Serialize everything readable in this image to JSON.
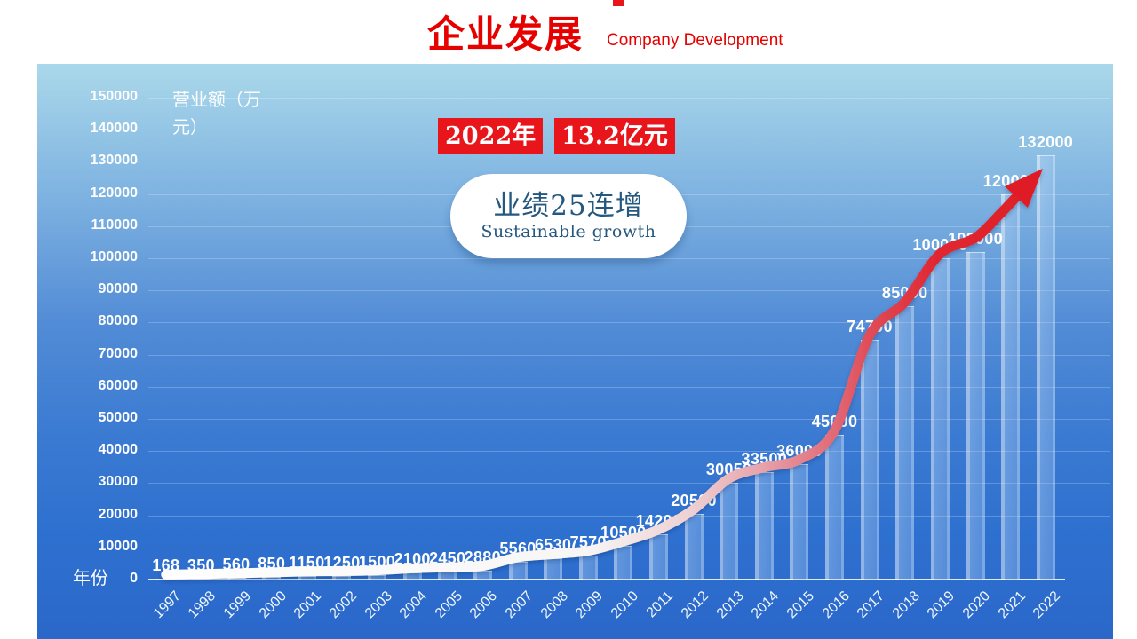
{
  "header": {
    "title": "企业发展",
    "subtitle": "Company Development"
  },
  "callout": {
    "year_badge": "2022年",
    "amount_badge": "13.2亿元"
  },
  "bubble": {
    "headline": "业绩25连增",
    "subline": "Sustainable growth"
  },
  "chart_data": {
    "type": "bar",
    "title": "企业发展 Company Development",
    "xlabel": "年份",
    "ylabel": "营业额（万元）",
    "categories": [
      "1997",
      "1998",
      "1999",
      "2000",
      "2001",
      "2002",
      "2003",
      "2004",
      "2005",
      "2006",
      "2007",
      "2008",
      "2009",
      "2010",
      "2011",
      "2012",
      "2013",
      "2014",
      "2015",
      "2016",
      "2017",
      "2018",
      "2019",
      "2020",
      "2021",
      "2022"
    ],
    "values": [
      168,
      350,
      560,
      850,
      1150,
      1250,
      1500,
      2100,
      2450,
      2880,
      5560,
      6530,
      7570,
      10500,
      14200,
      20500,
      30050,
      33500,
      36000,
      45000,
      74700,
      85000,
      100000,
      102000,
      120000,
      132000
    ],
    "ylim": [
      0,
      150000
    ],
    "y_ticks": [
      0,
      10000,
      20000,
      30000,
      40000,
      50000,
      60000,
      70000,
      80000,
      90000,
      100000,
      110000,
      120000,
      130000,
      140000,
      150000
    ],
    "grid": true,
    "legend": "none",
    "annotation": "white-to-red growth arrow following bar tops, ending in red arrowhead at 2022"
  },
  "colors": {
    "title_red": "#e60000",
    "badge_red": "#e8151b",
    "arrow_red": "#df1f27",
    "text_white": "#ffffff",
    "bubble_text": "#25587f",
    "chart_bg_top": "#aad8ea",
    "chart_bg_bottom": "#2a68ca"
  }
}
